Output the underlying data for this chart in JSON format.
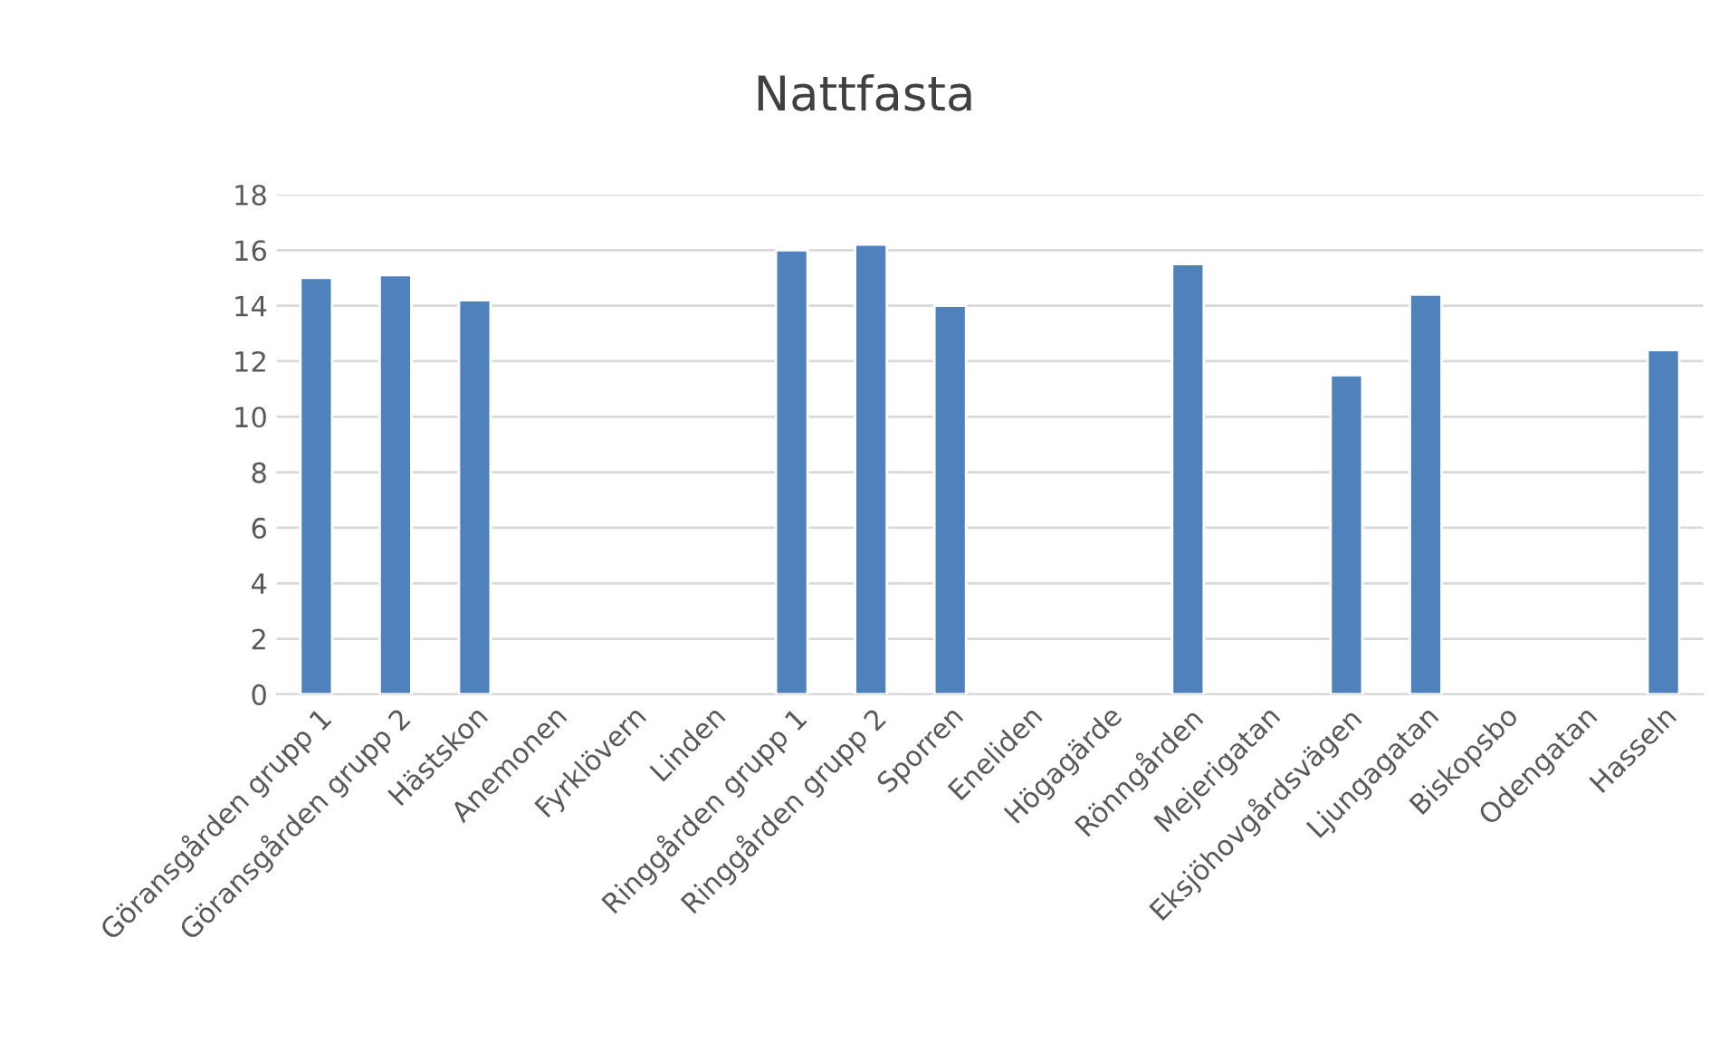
{
  "chart_data": {
    "type": "bar",
    "title": "Nattfasta",
    "categories": [
      "Göransgården grupp 1",
      "Göransgården grupp 2",
      "Hästskon",
      "Anemonen",
      "Fyrklövern",
      "Linden",
      "Ringgården grupp 1",
      "Ringgården grupp 2",
      "Sporren",
      "Eneliden",
      "Högagärde",
      "Rönngården",
      "Mejerigatan",
      "Eksjöhovgårdsvägen",
      "Ljungagatan",
      "Biskopsbo",
      "Odengatan",
      "Hasseln"
    ],
    "values": [
      15.0,
      15.1,
      14.2,
      null,
      null,
      null,
      16.0,
      16.2,
      14.0,
      null,
      null,
      15.5,
      null,
      11.5,
      14.4,
      null,
      null,
      12.4
    ],
    "color": "#4f81bd",
    "ylim": [
      0,
      18
    ],
    "yticks": [
      0,
      2,
      4,
      6,
      8,
      10,
      12,
      14,
      16,
      18
    ],
    "grid": "y",
    "legend": false
  }
}
